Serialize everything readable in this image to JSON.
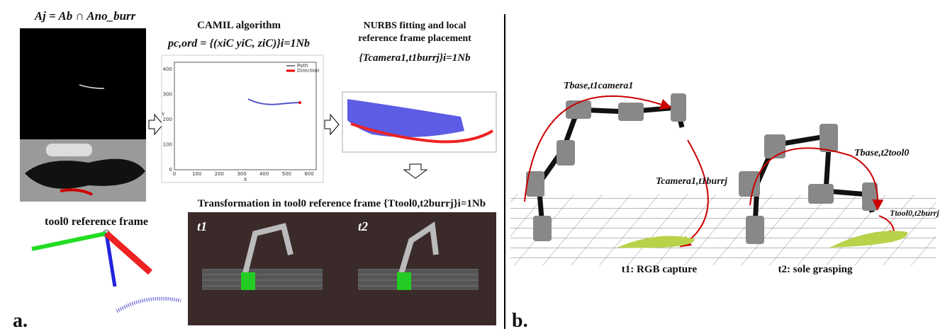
{
  "panel_a": {
    "label": "a.",
    "mask_formula": "Aj = Ab ∩ Ano_burr",
    "camil": {
      "title": "CAMIL algorithm",
      "formula": "pc,ord = {(xiC yiC, ziC)}i=1Nb",
      "plot": {
        "xticks": [
          0,
          100,
          200,
          300,
          400,
          500,
          600
        ],
        "yticks": [
          0,
          100,
          200,
          300,
          400
        ],
        "xlabel": "X",
        "ylabel": "Y",
        "legend": [
          "Path",
          "Direction"
        ]
      }
    },
    "nurbs": {
      "title_line1": "NURBS fitting and local",
      "title_line2": "reference frame placement",
      "formula": "{Tcamera1,t1burrj}i=1Nb"
    },
    "tool_frame": "tool0 reference frame",
    "transformation": {
      "title": "Transformation in tool0 reference frame {Ttool0,t2burrj}i=1Nb",
      "frames": [
        "t1",
        "t2"
      ]
    }
  },
  "panel_b": {
    "label": "b.",
    "t1": {
      "arc_upper": "Tbase,t1camera1",
      "arc_lower": "Tcamera1,t1burrj",
      "caption": "t1: RGB capture"
    },
    "t2": {
      "arc_upper": "Tbase,t2tool0",
      "arc_lower": "Ttool0,t2burrj",
      "caption": "t2: sole grasping"
    }
  }
}
